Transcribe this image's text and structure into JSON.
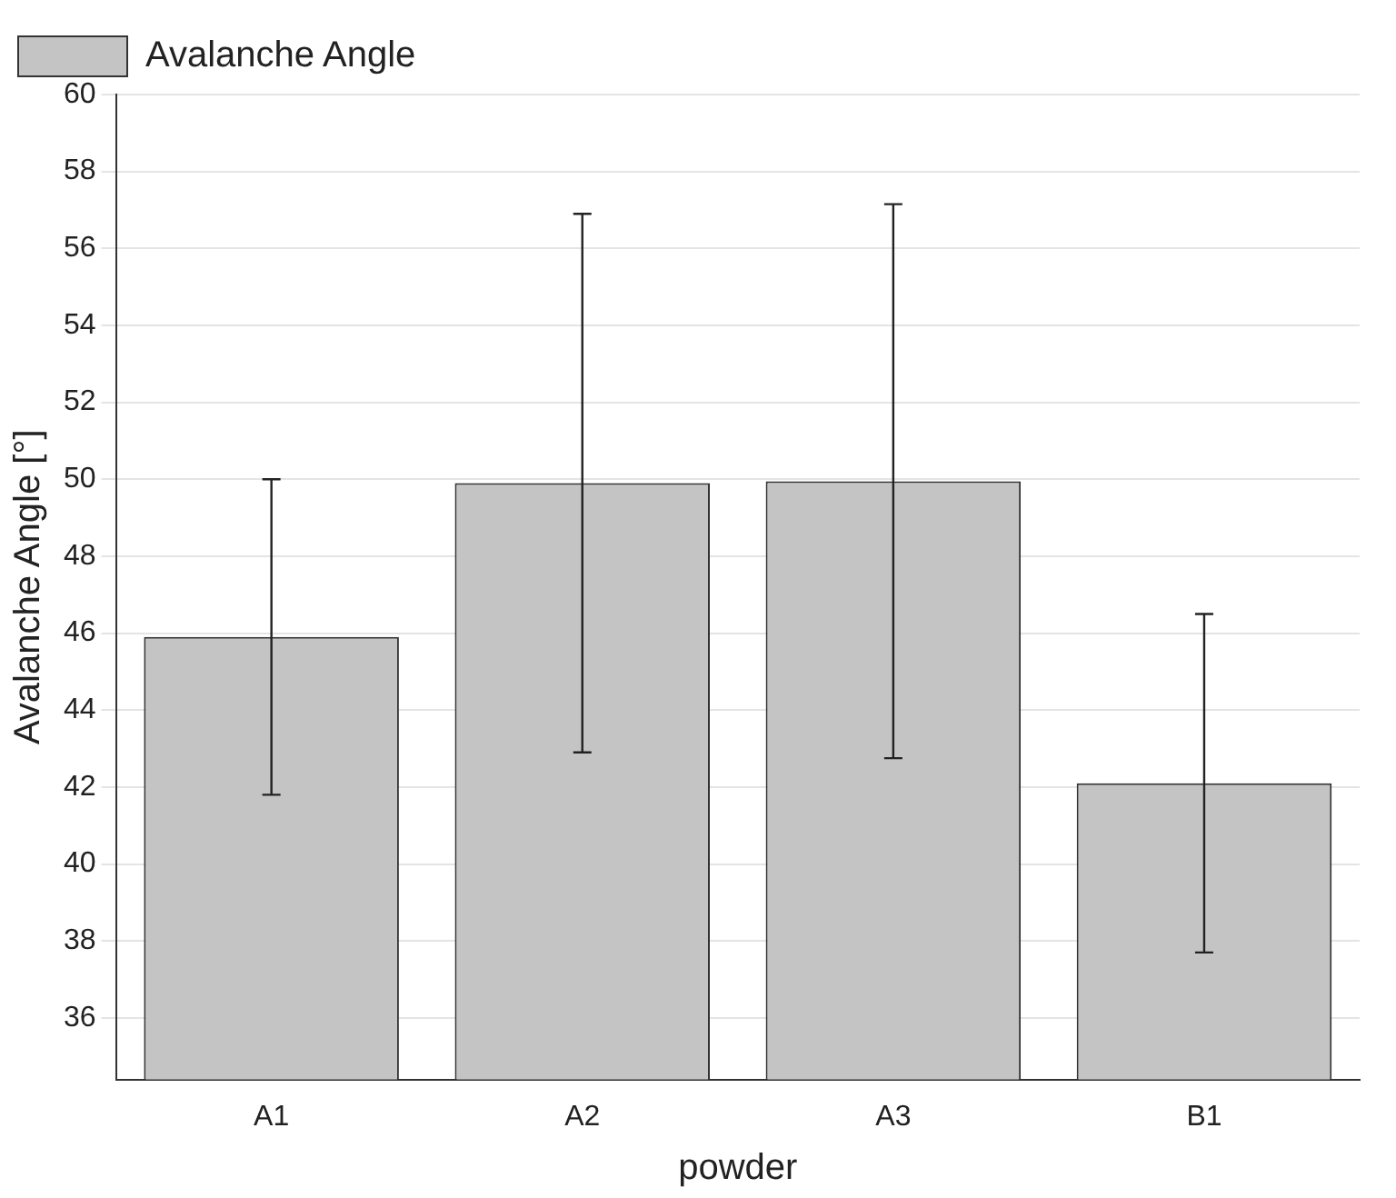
{
  "chart_data": {
    "type": "bar",
    "xlabel": "powder",
    "ylabel": "Avalanche Angle [°]",
    "categories": [
      "A1",
      "A2",
      "A3",
      "B1"
    ],
    "series": [
      {
        "name": "Avalanche Angle",
        "color": "#c4c4c4",
        "values": [
          45.9,
          49.9,
          49.95,
          42.1
        ],
        "errors": [
          4.1,
          7.0,
          7.2,
          4.4
        ]
      }
    ],
    "ylim": [
      34.4,
      60
    ],
    "yticks": [
      36,
      38,
      40,
      42,
      44,
      46,
      48,
      50,
      52,
      54,
      56,
      58,
      60
    ],
    "grid": "y",
    "legend": "top left"
  }
}
